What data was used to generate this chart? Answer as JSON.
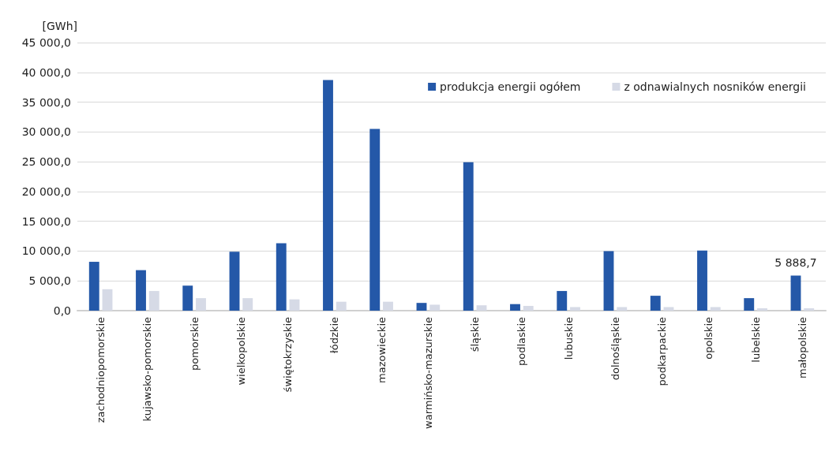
{
  "chart_data": {
    "type": "bar",
    "ylabel": "[GWh]",
    "categories": [
      "zachodniopomorskie",
      "kujawsko-pomorskie",
      "pomorskie",
      "wielkopolskie",
      "świętokrzyskie",
      "łódzkie",
      "mazowieckie",
      "warmińsko-mazurskie",
      "śląskie",
      "podlaskie",
      "lubuskie",
      "dolnośląskie",
      "podkarpackie",
      "opolskie",
      "lubelskie",
      "małopolskie"
    ],
    "series": [
      {
        "name": "produkcja energii ogółem",
        "color": "#2458a8",
        "values": [
          8200,
          6800,
          4200,
          9900,
          11300,
          38700,
          30500,
          1300,
          24900,
          1100,
          3300,
          10000,
          2500,
          10100,
          2100,
          5888.7
        ],
        "value_labels": [
          null,
          null,
          null,
          null,
          null,
          null,
          null,
          null,
          null,
          null,
          null,
          null,
          null,
          null,
          null,
          "5 888,7"
        ]
      },
      {
        "name": "z odnawialnych nosników energii",
        "color": "#d6dae6",
        "values": [
          3600,
          3300,
          2100,
          2100,
          1900,
          1500,
          1500,
          1000,
          900,
          800,
          600,
          600,
          600,
          600,
          400,
          400
        ]
      }
    ],
    "ylim": [
      0,
      45000
    ],
    "yticks": [
      {
        "value": 0,
        "label": "0,0"
      },
      {
        "value": 5000,
        "label": "5 000,0"
      },
      {
        "value": 10000,
        "label": "10 000,0"
      },
      {
        "value": 15000,
        "label": "15 000,0"
      },
      {
        "value": 20000,
        "label": "20 000,0"
      },
      {
        "value": 25000,
        "label": "25 000,0"
      },
      {
        "value": 30000,
        "label": "30 000,0"
      },
      {
        "value": 35000,
        "label": "35 000,0"
      },
      {
        "value": 40000,
        "label": "40 000,0"
      },
      {
        "value": 45000,
        "label": "45 000,0"
      }
    ],
    "grid": "y",
    "legend": "top right"
  }
}
